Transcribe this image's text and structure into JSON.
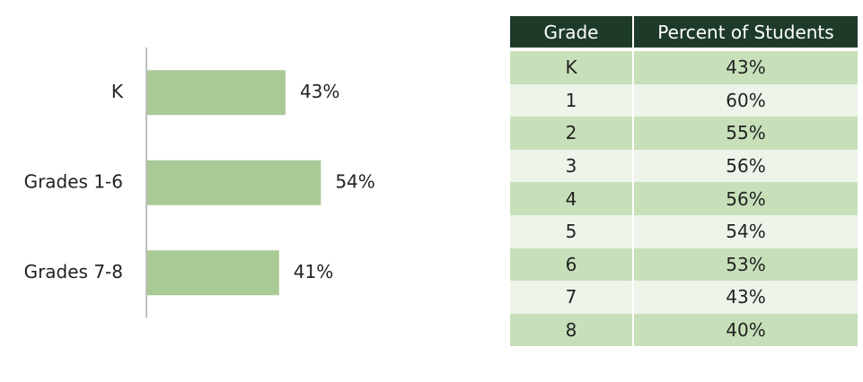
{
  "chart_data": {
    "type": "barh",
    "categories": [
      "K",
      "Grades 1-6",
      "Grades 7-8"
    ],
    "values": [
      43,
      54,
      41
    ],
    "value_labels": [
      "43%",
      "54%",
      "41%"
    ],
    "color": "#a9c995"
  },
  "table": {
    "header": [
      "Grade",
      "Percent of Students"
    ],
    "rows": [
      [
        "K",
        "43%"
      ],
      [
        "1",
        "60%"
      ],
      [
        "2",
        "55%"
      ],
      [
        "3",
        "56%"
      ],
      [
        "4",
        "56%"
      ],
      [
        "5",
        "54%"
      ],
      [
        "6",
        "53%"
      ],
      [
        "7",
        "43%"
      ],
      [
        "8",
        "40%"
      ]
    ]
  }
}
